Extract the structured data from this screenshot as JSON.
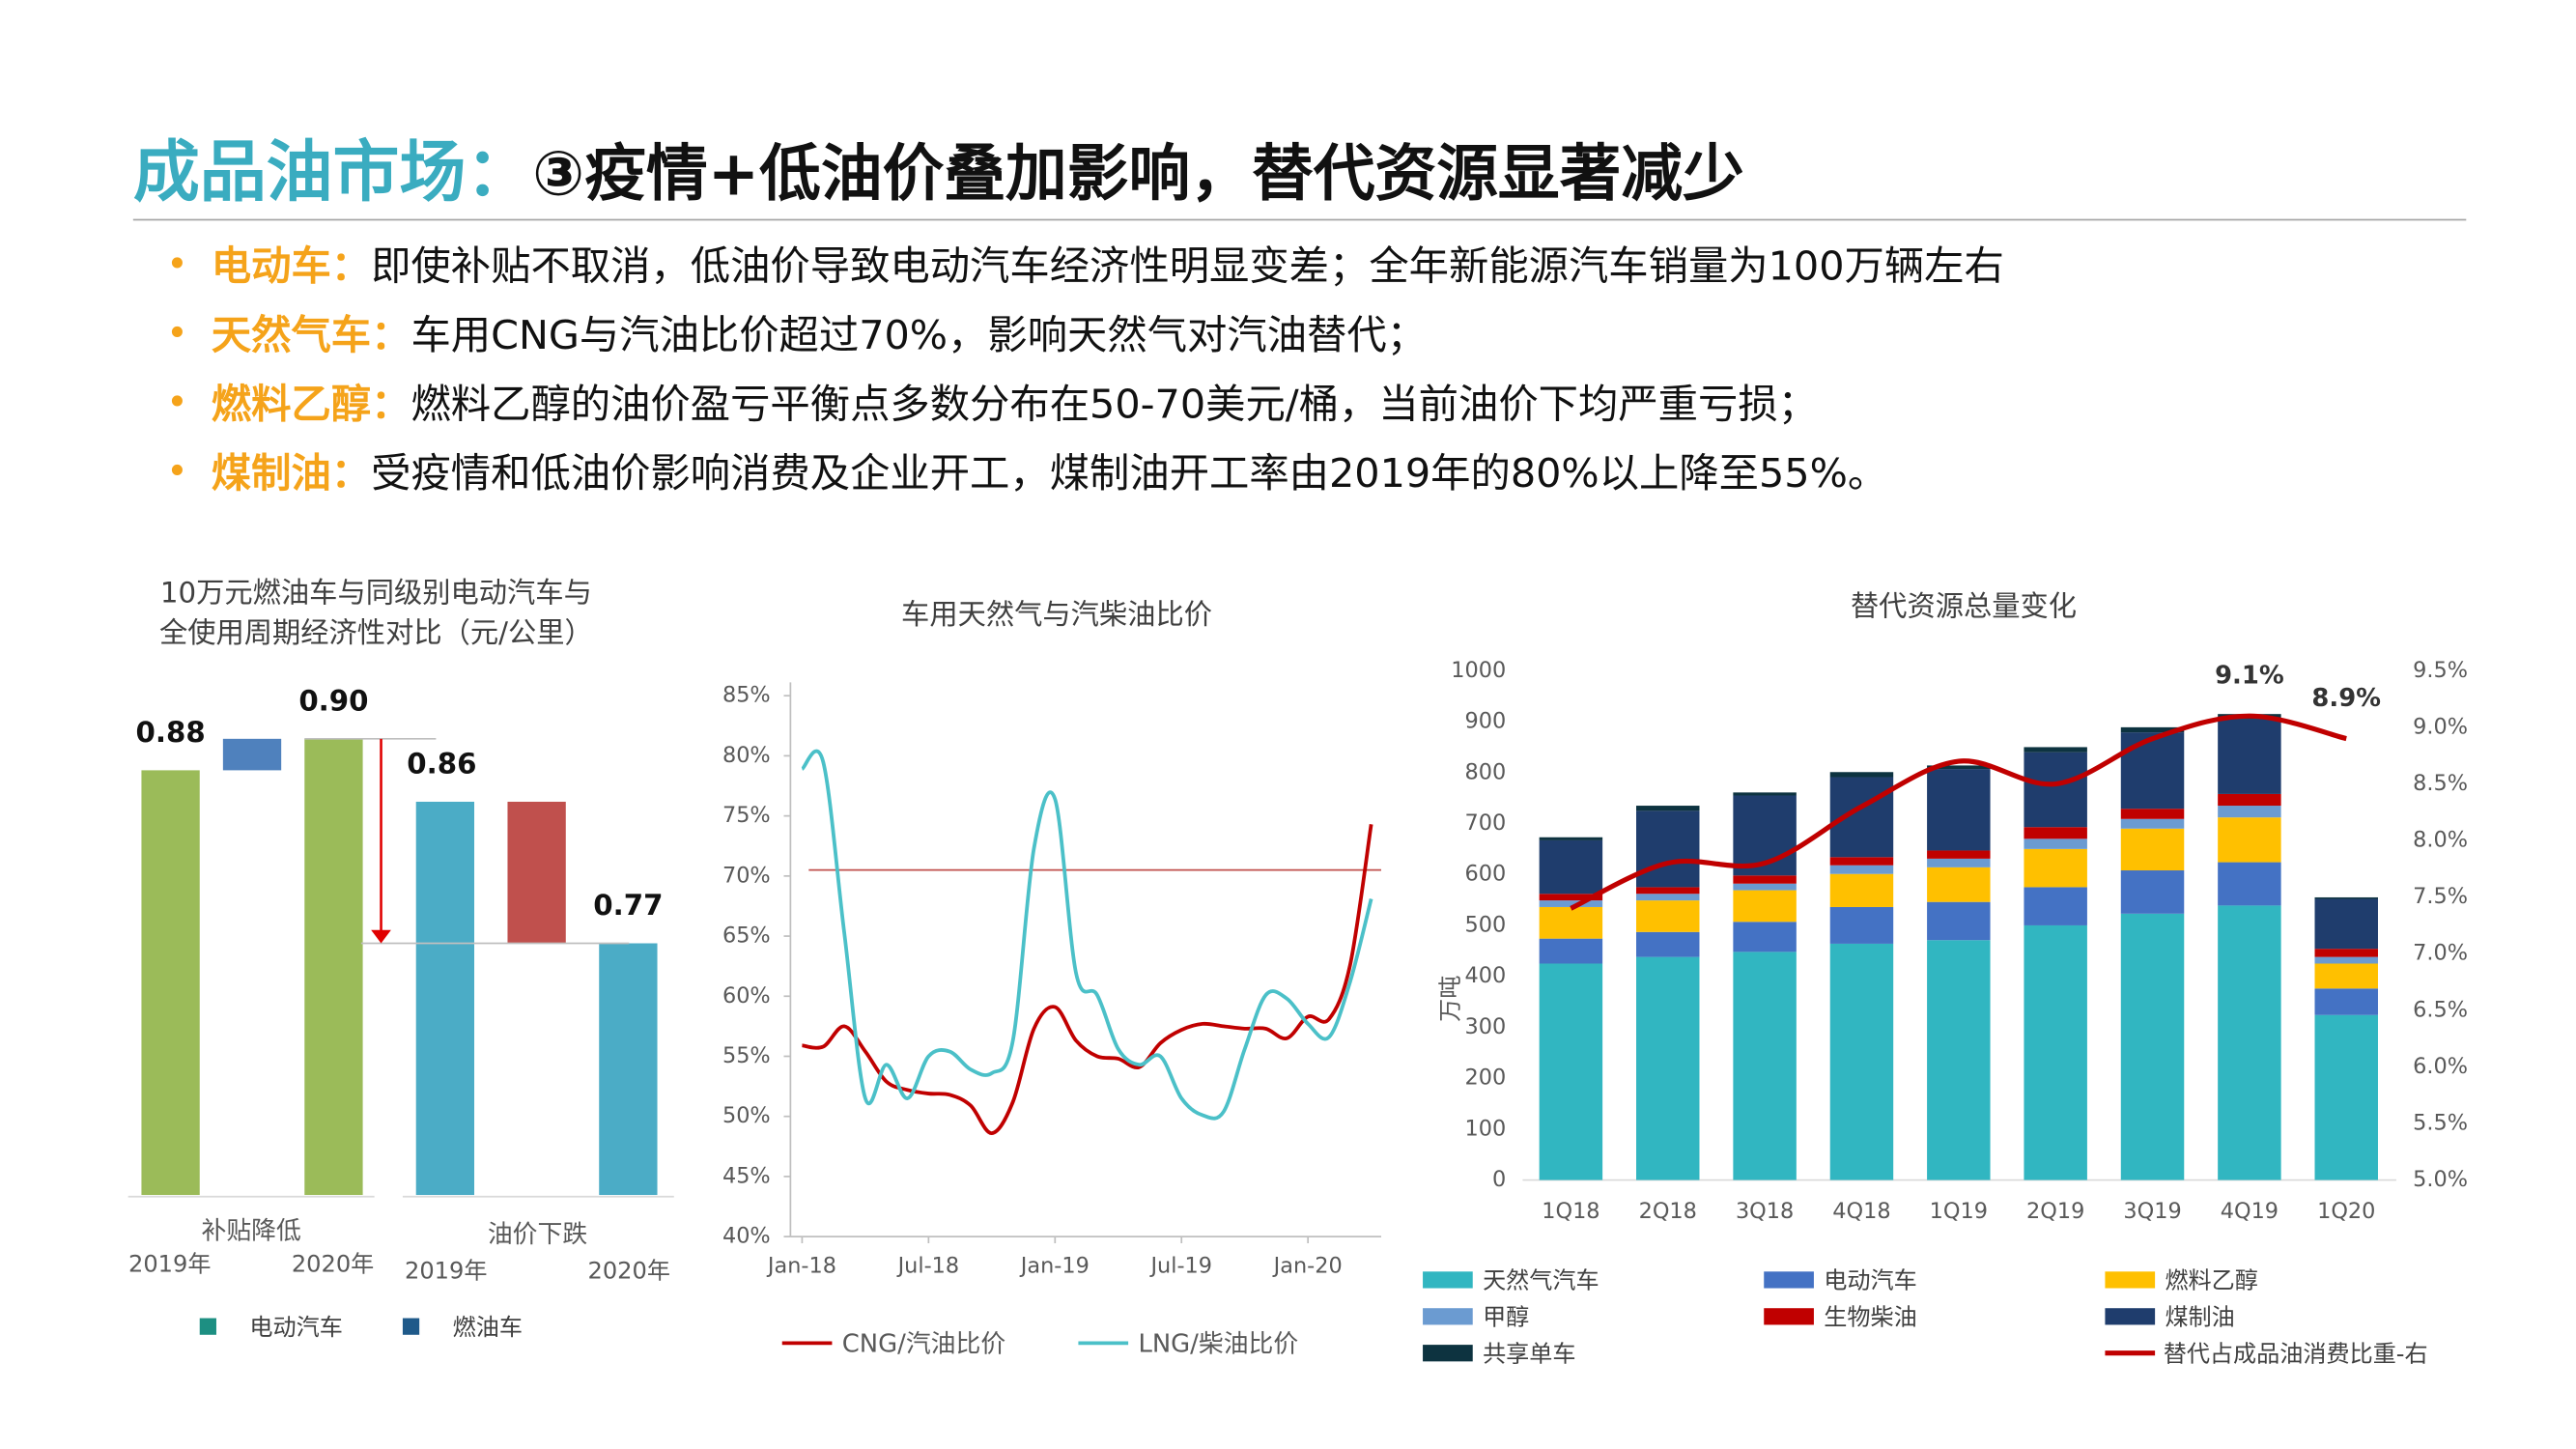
{
  "header": {
    "title_prefix": "成品油市场：",
    "title_main": "③疫情+低油价叠加影响，替代资源显著减少"
  },
  "bullets": [
    {
      "label": "电动车：",
      "text": "即使补贴不取消，低油价导致电动汽车经济性明显变差；全年新能源汽车销量为100万辆左右"
    },
    {
      "label": "天然气车：",
      "text": "车用CNG与汽油比价超过70%，影响天然气对汽油替代；"
    },
    {
      "label": "燃料乙醇：",
      "text": "燃料乙醇的油价盈亏平衡点多数分布在50-70美元/桶，当前油价下均严重亏损；"
    },
    {
      "label": "煤制油：",
      "text": "受疫情和低油价影响消费及企业开工，煤制油开工率由2019年的80%以上降至55%。"
    }
  ],
  "chart_data": [
    {
      "type": "waterfall",
      "title": [
        "10万元燃油车与同级别电动汽车与",
        "全使用周期经济性对比（元/公里）"
      ],
      "ylim": [
        0.61,
        0.92
      ],
      "groups": [
        {
          "name": "补贴降低",
          "categories": [
            "2019年",
            "2020年"
          ],
          "values": [
            0.88,
            0.9
          ],
          "value_labels": [
            "0.88",
            "0.90"
          ],
          "change": 0.02,
          "bar_color": "#9bbb59",
          "change_color": "#4f81bd"
        },
        {
          "name": "油价下跌",
          "categories": [
            "2019年",
            "2020年"
          ],
          "values": [
            0.86,
            0.77
          ],
          "value_labels": [
            "0.86",
            "0.77"
          ],
          "change": -0.09,
          "bar_color": "#4bacc6",
          "change_color": "#c0504d"
        }
      ],
      "legend": [
        {
          "name": "电动汽车",
          "color": "#1d8f82"
        },
        {
          "name": "燃油车",
          "color": "#1f5a8a"
        }
      ]
    },
    {
      "type": "line",
      "title": "车用天然气与汽柴油比价",
      "x": [
        "2018-01",
        "2018-02",
        "2018-03",
        "2018-04",
        "2018-05",
        "2018-06",
        "2018-07",
        "2018-08",
        "2018-09",
        "2018-10",
        "2018-11",
        "2018-12",
        "2019-01",
        "2019-02",
        "2019-03",
        "2019-04",
        "2019-05",
        "2019-06",
        "2019-07",
        "2019-08",
        "2019-09",
        "2019-10",
        "2019-11",
        "2019-12",
        "2020-01",
        "2020-02",
        "2020-03",
        "2020-04"
      ],
      "xticks": [
        {
          "value": "2018-01",
          "label": "Jan-18"
        },
        {
          "value": "2018-07",
          "label": "Jul-18"
        },
        {
          "value": "2019-01",
          "label": "Jan-19"
        },
        {
          "value": "2019-07",
          "label": "Jul-19"
        },
        {
          "value": "2020-01",
          "label": "Jan-20"
        }
      ],
      "ylim": [
        40,
        85
      ],
      "yticks": [
        {
          "value": 40,
          "label": "40%"
        },
        {
          "value": 45,
          "label": "45%"
        },
        {
          "value": 50,
          "label": "50%"
        },
        {
          "value": 55,
          "label": "55%"
        },
        {
          "value": 60,
          "label": "60%"
        },
        {
          "value": 65,
          "label": "65%"
        },
        {
          "value": 70,
          "label": "70%"
        },
        {
          "value": 75,
          "label": "75%"
        },
        {
          "value": 80,
          "label": "80%"
        },
        {
          "value": 85,
          "label": "85%"
        }
      ],
      "reference_line": 70.5,
      "reference_color": "#c0504d",
      "series": [
        {
          "name": "CNG/汽油比价",
          "color": "#c00000",
          "values": [
            55.9,
            55.8,
            57.5,
            55.4,
            52.9,
            52.2,
            51.9,
            51.8,
            50.9,
            48.6,
            51.2,
            57.3,
            59.1,
            56.3,
            55.0,
            54.8,
            54.1,
            56.1,
            57.2,
            57.7,
            57.5,
            57.3,
            57.3,
            56.5,
            58.3,
            58.1,
            62.6,
            74.3
          ]
        },
        {
          "name": "LNG/柴油比价",
          "color": "#4bc0c8",
          "values": [
            78.9,
            79.5,
            65.3,
            51.5,
            54.3,
            51.5,
            55.0,
            55.4,
            53.9,
            53.6,
            56.3,
            72.3,
            76.4,
            61.9,
            60.1,
            55.6,
            54.3,
            55.0,
            51.5,
            50.1,
            50.4,
            55.6,
            60.1,
            59.8,
            57.7,
            56.6,
            61.2,
            68.1
          ]
        }
      ]
    },
    {
      "type": "stacked_bar_line",
      "title": "替代资源总量变化",
      "y_label": "万吨",
      "categories": [
        "1Q18",
        "2Q18",
        "3Q18",
        "4Q18",
        "1Q19",
        "2Q19",
        "3Q19",
        "4Q19",
        "1Q20"
      ],
      "ylim": [
        0,
        1000
      ],
      "yticks": [
        0,
        100,
        200,
        300,
        400,
        500,
        600,
        700,
        800,
        900,
        1000
      ],
      "y2lim": [
        5.0,
        9.5
      ],
      "y2ticks": [
        {
          "value": 5.0,
          "label": "5.0%"
        },
        {
          "value": 5.5,
          "label": "5.5%"
        },
        {
          "value": 6.0,
          "label": "6.0%"
        },
        {
          "value": 6.5,
          "label": "6.5%"
        },
        {
          "value": 7.0,
          "label": "7.0%"
        },
        {
          "value": 7.5,
          "label": "7.5%"
        },
        {
          "value": 8.0,
          "label": "8.0%"
        },
        {
          "value": 8.5,
          "label": "8.5%"
        },
        {
          "value": 9.0,
          "label": "9.0%"
        },
        {
          "value": 9.5,
          "label": "9.5%"
        }
      ],
      "series": [
        {
          "name": "天然气汽车",
          "color": "#31b6c1",
          "values": [
            425,
            438,
            448,
            464,
            471,
            500,
            523,
            539,
            324
          ]
        },
        {
          "name": "电动汽车",
          "color": "#4472c4",
          "values": [
            49,
            49,
            59,
            72,
            75,
            75,
            85,
            85,
            52
          ]
        },
        {
          "name": "燃料乙醇",
          "color": "#ffc000",
          "values": [
            62,
            62,
            62,
            65,
            68,
            75,
            82,
            88,
            49
          ]
        },
        {
          "name": "甲醇",
          "color": "#6b9bd1",
          "values": [
            13,
            13,
            13,
            17,
            17,
            20,
            19,
            23,
            13
          ]
        },
        {
          "name": "生物柴油",
          "color": "#c00000",
          "values": [
            13,
            13,
            16,
            16,
            16,
            23,
            20,
            23,
            16
          ]
        },
        {
          "name": "煤制油",
          "color": "#1f3d6d",
          "values": [
            105,
            150,
            157,
            157,
            160,
            147,
            150,
            147,
            98
          ]
        },
        {
          "name": "共享单车",
          "color": "#0d3340",
          "values": [
            6,
            10,
            6,
            10,
            7,
            10,
            10,
            10,
            3
          ]
        },
        {
          "name": "替代占成品油消费比重-右",
          "color": "#c00000",
          "axis": "y2",
          "values": [
            7.4,
            7.8,
            7.8,
            8.3,
            8.7,
            8.5,
            8.9,
            9.1,
            8.9
          ],
          "value_labels": [
            null,
            null,
            null,
            null,
            null,
            null,
            null,
            "9.1%",
            "8.9%"
          ]
        }
      ]
    }
  ]
}
